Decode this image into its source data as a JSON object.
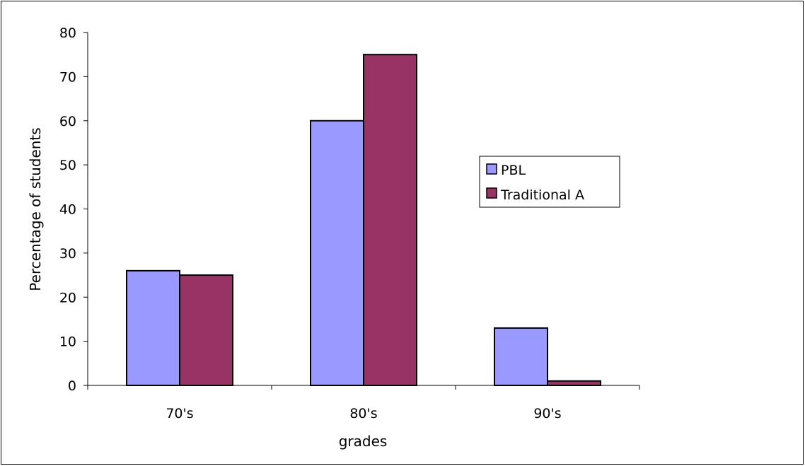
{
  "chart_data": {
    "type": "bar",
    "categories": [
      "70's",
      "80's",
      "90's"
    ],
    "series": [
      {
        "name": "PBL",
        "values": [
          26,
          60,
          13
        ],
        "color": "#9999ff"
      },
      {
        "name": "Traditional A",
        "values": [
          25,
          75,
          1
        ],
        "color": "#993366"
      }
    ],
    "xlabel": "grades",
    "ylabel": "Percentage of students",
    "ylim": [
      0,
      80
    ],
    "yticks": [
      "0",
      "10",
      "20",
      "30",
      "40",
      "50",
      "60",
      "70",
      "80"
    ],
    "grid": false,
    "legend_position": "right"
  }
}
